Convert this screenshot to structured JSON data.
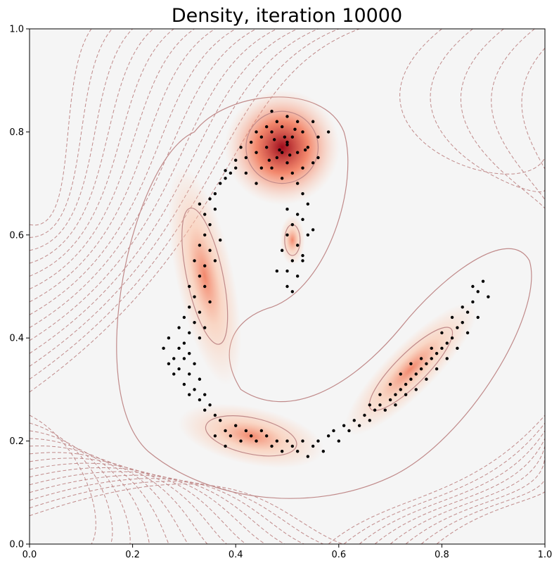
{
  "chart_data": {
    "type": "scatter",
    "title": "Density, iteration 10000",
    "xlabel": "",
    "ylabel": "",
    "xlim": [
      0.0,
      1.0
    ],
    "ylim": [
      0.0,
      1.0
    ],
    "xticks": [
      "0.0",
      "0.2",
      "0.4",
      "0.6",
      "0.8",
      "1.0"
    ],
    "yticks": [
      "0.0",
      "0.2",
      "0.4",
      "0.6",
      "0.8",
      "1.0"
    ],
    "grid": false,
    "legend": "none",
    "background_colormap": "Reds",
    "colors": {
      "background": "#f5f5f5",
      "points": "#000000",
      "contour": "#c08a8a",
      "density_peak": "#9e0b1c",
      "density_mid": "#f26d4b",
      "density_low": "#fcc2a5"
    },
    "components": [
      {
        "cx": 0.49,
        "cy": 0.77,
        "rx": 0.07,
        "ry": 0.07,
        "angle": 0
      },
      {
        "cx": 0.51,
        "cy": 0.59,
        "rx": 0.015,
        "ry": 0.03,
        "angle": 0
      },
      {
        "cx": 0.34,
        "cy": 0.52,
        "rx": 0.035,
        "ry": 0.135,
        "angle": 12
      },
      {
        "cx": 0.43,
        "cy": 0.21,
        "rx": 0.09,
        "ry": 0.035,
        "angle": -12
      },
      {
        "cx": 0.74,
        "cy": 0.34,
        "rx": 0.11,
        "ry": 0.03,
        "angle": 45
      }
    ],
    "samples": [
      [
        0.47,
        0.8
      ],
      [
        0.5,
        0.78
      ],
      [
        0.49,
        0.76
      ],
      [
        0.48,
        0.75
      ],
      [
        0.51,
        0.79
      ],
      [
        0.46,
        0.77
      ],
      [
        0.52,
        0.76
      ],
      [
        0.49,
        0.81
      ],
      [
        0.45,
        0.79
      ],
      [
        0.5,
        0.74
      ],
      [
        0.53,
        0.8
      ],
      [
        0.47,
        0.73
      ],
      [
        0.51,
        0.72
      ],
      [
        0.44,
        0.76
      ],
      [
        0.54,
        0.77
      ],
      [
        0.48,
        0.82
      ],
      [
        0.5,
        0.83
      ],
      [
        0.43,
        0.78
      ],
      [
        0.55,
        0.74
      ],
      [
        0.46,
        0.81
      ],
      [
        0.52,
        0.82
      ],
      [
        0.42,
        0.75
      ],
      [
        0.56,
        0.79
      ],
      [
        0.49,
        0.71
      ],
      [
        0.45,
        0.73
      ],
      [
        0.53,
        0.73
      ],
      [
        0.47,
        0.84
      ],
      [
        0.58,
        0.8
      ],
      [
        0.41,
        0.77
      ],
      [
        0.55,
        0.82
      ],
      [
        0.5,
        0.775
      ],
      [
        0.485,
        0.765
      ],
      [
        0.495,
        0.79
      ],
      [
        0.475,
        0.785
      ],
      [
        0.505,
        0.755
      ],
      [
        0.515,
        0.805
      ],
      [
        0.465,
        0.745
      ],
      [
        0.535,
        0.765
      ],
      [
        0.44,
        0.8
      ],
      [
        0.56,
        0.75
      ],
      [
        0.4,
        0.73
      ],
      [
        0.39,
        0.72
      ],
      [
        0.38,
        0.71
      ],
      [
        0.37,
        0.7
      ],
      [
        0.36,
        0.68
      ],
      [
        0.35,
        0.67
      ],
      [
        0.36,
        0.65
      ],
      [
        0.34,
        0.64
      ],
      [
        0.4,
        0.745
      ],
      [
        0.38,
        0.725
      ],
      [
        0.52,
        0.7
      ],
      [
        0.53,
        0.68
      ],
      [
        0.54,
        0.66
      ],
      [
        0.52,
        0.64
      ],
      [
        0.51,
        0.62
      ],
      [
        0.53,
        0.63
      ],
      [
        0.5,
        0.6
      ],
      [
        0.52,
        0.58
      ],
      [
        0.54,
        0.6
      ],
      [
        0.49,
        0.57
      ],
      [
        0.51,
        0.55
      ],
      [
        0.53,
        0.55
      ],
      [
        0.5,
        0.53
      ],
      [
        0.52,
        0.52
      ],
      [
        0.48,
        0.53
      ],
      [
        0.5,
        0.5
      ],
      [
        0.51,
        0.49
      ],
      [
        0.53,
        0.56
      ],
      [
        0.55,
        0.61
      ],
      [
        0.5,
        0.65
      ],
      [
        0.35,
        0.62
      ],
      [
        0.34,
        0.6
      ],
      [
        0.33,
        0.58
      ],
      [
        0.35,
        0.57
      ],
      [
        0.32,
        0.55
      ],
      [
        0.34,
        0.54
      ],
      [
        0.33,
        0.52
      ],
      [
        0.31,
        0.5
      ],
      [
        0.34,
        0.5
      ],
      [
        0.32,
        0.48
      ],
      [
        0.35,
        0.47
      ],
      [
        0.31,
        0.46
      ],
      [
        0.33,
        0.45
      ],
      [
        0.3,
        0.44
      ],
      [
        0.32,
        0.43
      ],
      [
        0.34,
        0.42
      ],
      [
        0.31,
        0.41
      ],
      [
        0.33,
        0.4
      ],
      [
        0.36,
        0.55
      ],
      [
        0.37,
        0.59
      ],
      [
        0.3,
        0.39
      ],
      [
        0.29,
        0.38
      ],
      [
        0.31,
        0.37
      ],
      [
        0.3,
        0.36
      ],
      [
        0.32,
        0.35
      ],
      [
        0.29,
        0.34
      ],
      [
        0.31,
        0.33
      ],
      [
        0.33,
        0.32
      ],
      [
        0.3,
        0.31
      ],
      [
        0.32,
        0.3
      ],
      [
        0.34,
        0.29
      ],
      [
        0.31,
        0.29
      ],
      [
        0.33,
        0.28
      ],
      [
        0.35,
        0.27
      ],
      [
        0.34,
        0.26
      ],
      [
        0.36,
        0.25
      ],
      [
        0.28,
        0.36
      ],
      [
        0.27,
        0.4
      ],
      [
        0.29,
        0.42
      ],
      [
        0.28,
        0.33
      ],
      [
        0.37,
        0.24
      ],
      [
        0.38,
        0.22
      ],
      [
        0.39,
        0.21
      ],
      [
        0.4,
        0.23
      ],
      [
        0.41,
        0.2
      ],
      [
        0.42,
        0.22
      ],
      [
        0.43,
        0.21
      ],
      [
        0.44,
        0.2
      ],
      [
        0.45,
        0.22
      ],
      [
        0.46,
        0.21
      ],
      [
        0.47,
        0.19
      ],
      [
        0.48,
        0.2
      ],
      [
        0.49,
        0.18
      ],
      [
        0.5,
        0.2
      ],
      [
        0.51,
        0.19
      ],
      [
        0.52,
        0.18
      ],
      [
        0.53,
        0.2
      ],
      [
        0.54,
        0.17
      ],
      [
        0.36,
        0.21
      ],
      [
        0.38,
        0.19
      ],
      [
        0.55,
        0.19
      ],
      [
        0.56,
        0.2
      ],
      [
        0.57,
        0.18
      ],
      [
        0.58,
        0.21
      ],
      [
        0.59,
        0.22
      ],
      [
        0.6,
        0.2
      ],
      [
        0.61,
        0.23
      ],
      [
        0.62,
        0.22
      ],
      [
        0.63,
        0.24
      ],
      [
        0.64,
        0.23
      ],
      [
        0.65,
        0.25
      ],
      [
        0.66,
        0.24
      ],
      [
        0.67,
        0.26
      ],
      [
        0.68,
        0.27
      ],
      [
        0.69,
        0.26
      ],
      [
        0.7,
        0.28
      ],
      [
        0.71,
        0.29
      ],
      [
        0.72,
        0.3
      ],
      [
        0.73,
        0.31
      ],
      [
        0.74,
        0.32
      ],
      [
        0.75,
        0.33
      ],
      [
        0.76,
        0.34
      ],
      [
        0.77,
        0.35
      ],
      [
        0.78,
        0.36
      ],
      [
        0.79,
        0.37
      ],
      [
        0.8,
        0.38
      ],
      [
        0.81,
        0.39
      ],
      [
        0.82,
        0.4
      ],
      [
        0.83,
        0.42
      ],
      [
        0.84,
        0.43
      ],
      [
        0.85,
        0.45
      ],
      [
        0.86,
        0.47
      ],
      [
        0.87,
        0.49
      ],
      [
        0.88,
        0.51
      ],
      [
        0.89,
        0.48
      ],
      [
        0.86,
        0.5
      ],
      [
        0.84,
        0.46
      ],
      [
        0.82,
        0.44
      ],
      [
        0.8,
        0.41
      ],
      [
        0.78,
        0.38
      ],
      [
        0.76,
        0.36
      ],
      [
        0.74,
        0.35
      ],
      [
        0.72,
        0.33
      ],
      [
        0.7,
        0.31
      ],
      [
        0.68,
        0.29
      ],
      [
        0.66,
        0.27
      ],
      [
        0.71,
        0.27
      ],
      [
        0.73,
        0.29
      ],
      [
        0.75,
        0.3
      ],
      [
        0.77,
        0.32
      ],
      [
        0.79,
        0.34
      ],
      [
        0.81,
        0.36
      ],
      [
        0.83,
        0.38
      ],
      [
        0.85,
        0.41
      ],
      [
        0.87,
        0.44
      ],
      [
        0.27,
        0.35
      ],
      [
        0.26,
        0.38
      ],
      [
        0.33,
        0.66
      ],
      [
        0.42,
        0.72
      ],
      [
        0.44,
        0.7
      ]
    ]
  }
}
